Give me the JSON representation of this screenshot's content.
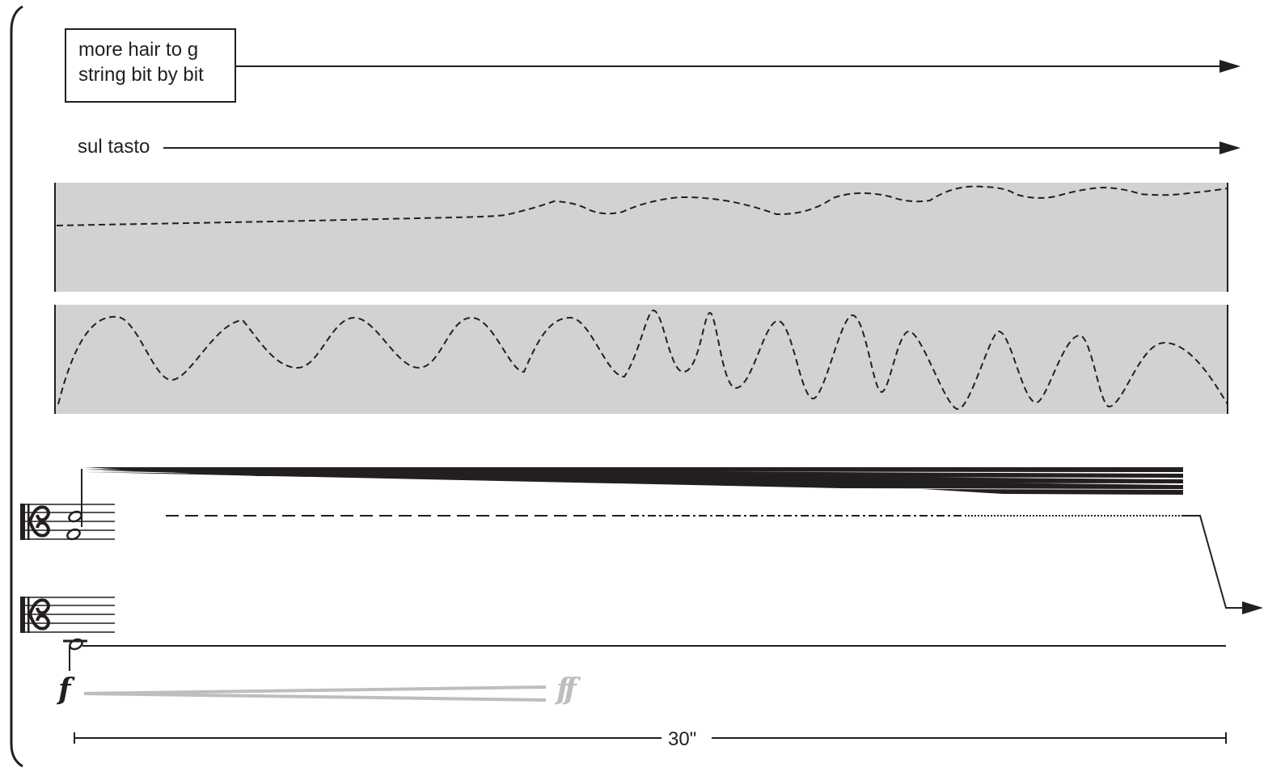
{
  "instructions": {
    "bow_hair_line1": "more hair to g",
    "bow_hair_line2": "string bit by bit",
    "bow_position": "sul tasto"
  },
  "graphs": {
    "panel_fill_color": "#d1d2d4",
    "line_color": "#231f20"
  },
  "dynamics": {
    "start": "f",
    "end": "ff",
    "end_color": "#bcbec0",
    "hairpin_color": "#bcbec0"
  },
  "duration": {
    "label": "30\""
  },
  "icons": {
    "system_bracket": "brace-icon",
    "clef": "alto-clef-icon"
  }
}
